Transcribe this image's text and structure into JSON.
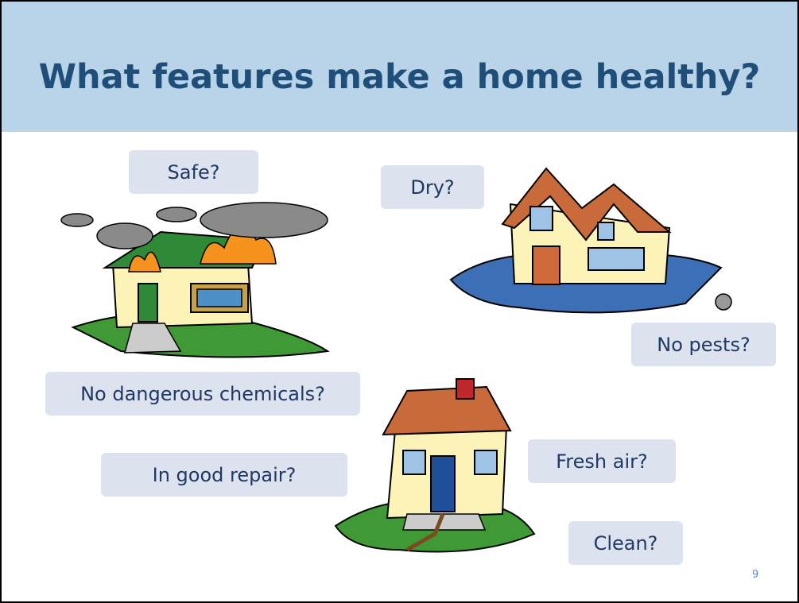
{
  "title": "What features make a home healthy?",
  "labels": [
    "Safe?",
    "Dry?",
    "No pests?",
    "No dangerous chemicals?",
    "In good repair?",
    "Fresh air?",
    "Clean?"
  ],
  "page_number": "9"
}
